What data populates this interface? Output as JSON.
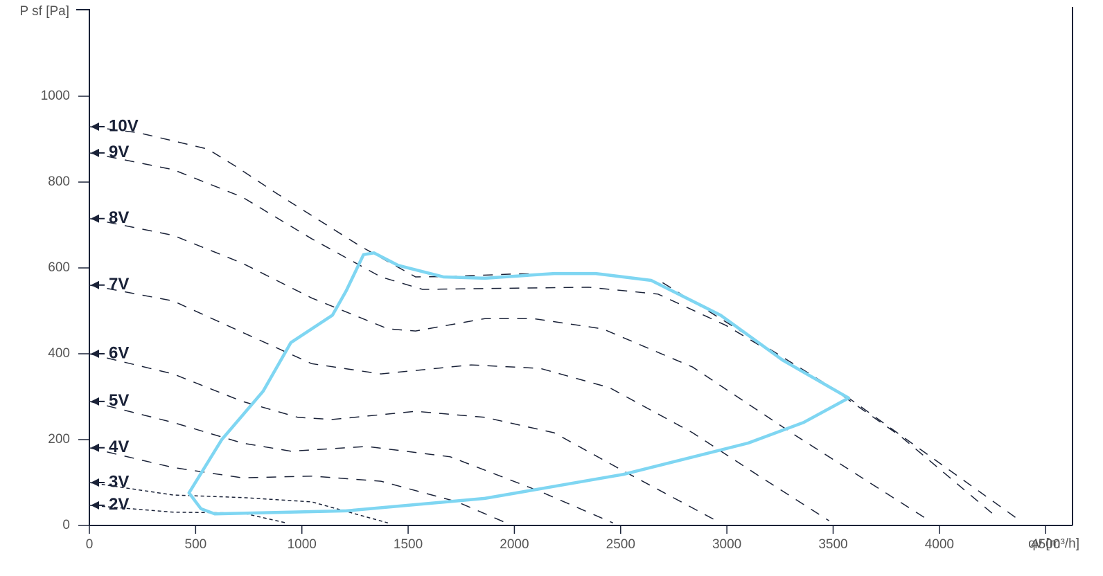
{
  "chart_data": {
    "type": "line",
    "y_label": "P sf [Pa]",
    "x_label": "qv [m³/h]",
    "xlim": [
      0,
      4620
    ],
    "ylim": [
      0,
      1200
    ],
    "xticks": [
      0,
      500,
      1000,
      1500,
      2000,
      2500,
      3000,
      3500,
      4000,
      4500
    ],
    "yticks": [
      0,
      200,
      400,
      600,
      800,
      1000
    ],
    "series": [
      {
        "name": "10V",
        "color": "#1a2238",
        "x": [
          0,
          231,
          557,
          688,
          883,
          1274,
          1535,
          1700,
          2000,
          2400,
          2700,
          2970,
          3573,
          4360
        ],
        "values": [
          929,
          915,
          877,
          837,
          773,
          651,
          579,
          580,
          586,
          587,
          565,
          482,
          297,
          18
        ]
      },
      {
        "name": "9V",
        "color": "#1a2238",
        "x": [
          0,
          394,
          720,
          1046,
          1372,
          1568,
          1861,
          2350,
          2676,
          2996,
          3491,
          3817,
          4273
        ],
        "values": [
          868,
          829,
          765,
          668,
          579,
          550,
          552,
          555,
          539,
          466,
          321,
          208,
          18
        ]
      },
      {
        "name": "8V",
        "color": "#1a2238",
        "x": [
          0,
          394,
          720,
          1046,
          1405,
          1535,
          1861,
          2089,
          2415,
          2839,
          3328,
          3931
        ],
        "values": [
          715,
          676,
          611,
          530,
          458,
          453,
          482,
          482,
          458,
          369,
          208,
          18
        ]
      },
      {
        "name": "7V",
        "color": "#1a2238",
        "x": [
          0,
          394,
          720,
          1046,
          1372,
          1796,
          2122,
          2448,
          2839,
          3165,
          3481
        ],
        "values": [
          560,
          523,
          450,
          377,
          353,
          374,
          366,
          321,
          216,
          111,
          11
        ]
      },
      {
        "name": "6V",
        "color": "#1a2238",
        "x": [
          0,
          394,
          720,
          981,
          1144,
          1535,
          1861,
          2187,
          2513,
          2970
        ],
        "values": [
          400,
          353,
          289,
          252,
          247,
          266,
          252,
          216,
          127,
          6
        ]
      },
      {
        "name": "5V",
        "color": "#1a2238",
        "x": [
          0,
          394,
          720,
          948,
          1307,
          1698,
          2122,
          2464
        ],
        "values": [
          289,
          240,
          192,
          173,
          184,
          160,
          79,
          6
        ]
      },
      {
        "name": "4V",
        "color": "#1a2238",
        "x": [
          0,
          394,
          720,
          1046,
          1372,
          1731,
          1975
        ],
        "values": [
          181,
          135,
          111,
          115,
          103,
          55,
          3
        ]
      },
      {
        "name": "3V",
        "color": "#1a2238",
        "x": [
          0,
          394,
          720,
          1046,
          1405
        ],
        "values": [
          100,
          71,
          65,
          55,
          6
        ]
      },
      {
        "name": "2V",
        "color": "#1a2238",
        "x": [
          0,
          394,
          720,
          926
        ],
        "values": [
          47,
          31,
          29,
          6
        ]
      }
    ],
    "envelope": {
      "color": "#7fd6f2",
      "x": [
        469,
        623,
        818,
        948,
        1144,
        1209,
        1290,
        1339,
        1453,
        1666,
        1861,
        2187,
        2383,
        2644,
        2970,
        3263,
        3573,
        3361,
        3100,
        2513,
        1861,
        1209,
        590,
        525,
        469
      ],
      "values": [
        76,
        200,
        313,
        426,
        490,
        547,
        631,
        635,
        606,
        579,
        576,
        587,
        587,
        571,
        490,
        385,
        297,
        240,
        192,
        119,
        63,
        34,
        27,
        39,
        76
      ]
    }
  }
}
